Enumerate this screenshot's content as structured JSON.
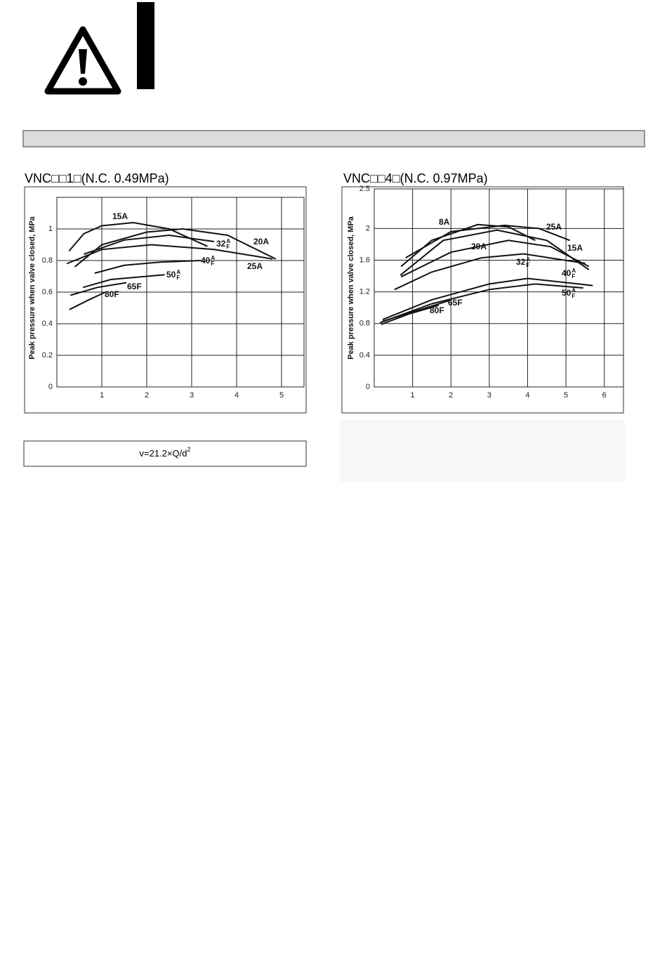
{
  "formula": {
    "text": "v=21.2×Q/d",
    "exponent": "2"
  },
  "chart_data": [
    {
      "type": "line",
      "title": "VNC□□1□(N.C. 0.49MPa)",
      "y_label": "Peak pressure when valve closed, MPa",
      "xlim": [
        0,
        5.5
      ],
      "xticks": [
        1,
        2,
        3,
        4,
        5
      ],
      "ylim": [
        0,
        1.2
      ],
      "yticks": [
        0,
        0.2,
        0.4,
        0.6,
        0.8,
        1
      ],
      "grid": true,
      "series": [
        {
          "name": "15A",
          "color": "#111111",
          "x": [
            0.27,
            0.6,
            1.0,
            1.7,
            2.5,
            3.35
          ],
          "values": [
            0.86,
            0.97,
            1.02,
            1.04,
            1.0,
            0.89
          ]
        },
        {
          "name": "32",
          "suffix_top": "A",
          "suffix_bottom": "F",
          "color": "#111111",
          "x": [
            0.6,
            1.5,
            2.5,
            3.5
          ],
          "values": [
            0.84,
            0.93,
            0.96,
            0.92
          ]
        },
        {
          "name": "20A",
          "color": "#111111",
          "x": [
            0.4,
            1,
            2,
            2.8,
            3.8,
            4.87
          ],
          "values": [
            0.76,
            0.9,
            0.98,
            1.0,
            0.96,
            0.81
          ]
        },
        {
          "name": "25A",
          "color": "#111111",
          "x": [
            0.22,
            1,
            2.1,
            3.5,
            4.8
          ],
          "values": [
            0.78,
            0.87,
            0.9,
            0.87,
            0.81
          ]
        },
        {
          "name": "40",
          "suffix_top": "A",
          "suffix_bottom": "F",
          "color": "#111111",
          "x": [
            0.84,
            1.5,
            2.3,
            3.2
          ],
          "values": [
            0.72,
            0.77,
            0.79,
            0.8
          ]
        },
        {
          "name": "50",
          "suffix_top": "A",
          "suffix_bottom": "F",
          "color": "#111111",
          "x": [
            0.58,
            1.2,
            2.4
          ],
          "values": [
            0.63,
            0.68,
            0.71
          ]
        },
        {
          "name": "65F",
          "color": "#111111",
          "x": [
            0.3,
            0.9,
            1.55
          ],
          "values": [
            0.58,
            0.63,
            0.66
          ]
        },
        {
          "name": "80F",
          "color": "#111111",
          "x": [
            0.28,
            0.7,
            1.08
          ],
          "values": [
            0.49,
            0.55,
            0.6
          ]
        }
      ]
    },
    {
      "type": "line",
      "title": "VNC□□4□(N.C. 0.97MPa)",
      "y_label": "Peak pressure when valve closed, MPa",
      "xlim": [
        0,
        6.5
      ],
      "xticks": [
        1,
        2,
        3,
        4,
        5,
        6
      ],
      "ylim": [
        0,
        2.5
      ],
      "yticks": [
        0,
        0.4,
        0.8,
        1.2,
        1.6,
        2,
        2.5
      ],
      "grid": true,
      "series": [
        {
          "name": "8A",
          "color": "#111111",
          "x": [
            0.7,
            1.5,
            2.7,
            3.5,
            4.2
          ],
          "values": [
            1.52,
            1.85,
            2.05,
            2.02,
            1.85
          ]
        },
        {
          "name": "25A",
          "color": "#111111",
          "x": [
            0.82,
            2,
            3.4,
            4.3,
            5.1
          ],
          "values": [
            1.63,
            1.96,
            2.04,
            2.0,
            1.85
          ]
        },
        {
          "name": "15A",
          "color": "#111111",
          "x": [
            0.68,
            1.8,
            3.2,
            4.5,
            5.6
          ],
          "values": [
            1.41,
            1.85,
            1.98,
            1.85,
            1.48
          ]
        },
        {
          "name": "20A",
          "color": "#111111",
          "x": [
            0.7,
            2,
            3.5,
            4.6,
            5.6
          ],
          "values": [
            1.39,
            1.7,
            1.85,
            1.77,
            1.52
          ]
        },
        {
          "name": "32",
          "suffix_top": "A",
          "suffix_bottom": "F",
          "color": "#111111",
          "x": [
            0.53,
            1.5,
            2.8,
            3.9,
            5.5
          ],
          "values": [
            1.23,
            1.45,
            1.63,
            1.68,
            1.56
          ]
        },
        {
          "name": "40",
          "suffix_top": "A",
          "suffix_bottom": "F",
          "color": "#111111",
          "x": [
            0.22,
            1.5,
            3,
            4,
            5.7
          ],
          "values": [
            0.85,
            1.1,
            1.3,
            1.37,
            1.28
          ]
        },
        {
          "name": "50",
          "suffix_top": "A",
          "suffix_bottom": "F",
          "color": "#111111",
          "x": [
            0.15,
            1.5,
            3,
            4.2,
            5.45
          ],
          "values": [
            0.81,
            1.05,
            1.23,
            1.3,
            1.25
          ]
        },
        {
          "name": "65F",
          "color": "#111111",
          "x": [
            0.22,
            1.1,
            1.96
          ],
          "values": [
            0.83,
            0.96,
            1.09
          ]
        },
        {
          "name": "80F",
          "color": "#111111",
          "x": [
            0.18,
            0.9,
            1.68
          ],
          "values": [
            0.79,
            0.92,
            1.03
          ]
        }
      ]
    }
  ]
}
